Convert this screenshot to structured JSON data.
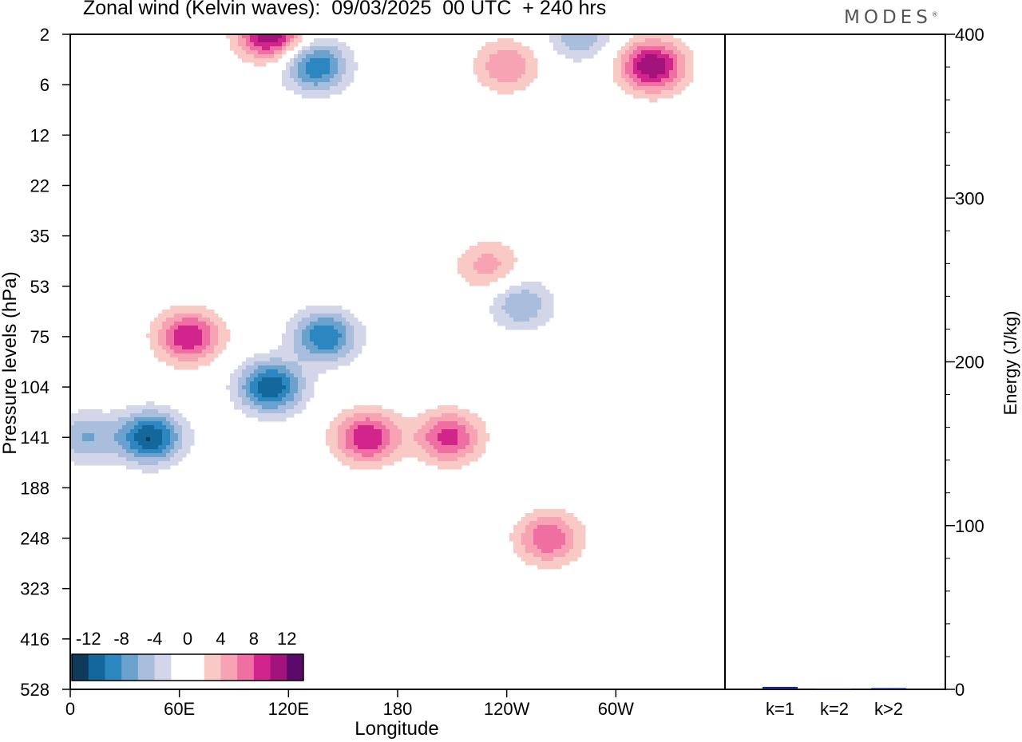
{
  "figure": {
    "title": "Zonal wind (Kelvin waves):  09/03/2025  00 UTC  + 240 hrs",
    "brand": "MODES"
  },
  "chart_data": [
    {
      "type": "heatmap",
      "title": "Zonal wind (Kelvin waves):  09/03/2025  00 UTC  + 240 hrs",
      "xlabel": "Longitude",
      "ylabel": "Pressure levels (hPa)",
      "x_ticks": [
        "0",
        "60E",
        "120E",
        "180",
        "120W",
        "60W"
      ],
      "x_tick_values": [
        0,
        60,
        120,
        180,
        240,
        300
      ],
      "xlim": [
        0,
        360
      ],
      "y_ticks": [
        "2",
        "6",
        "12",
        "22",
        "35",
        "53",
        "75",
        "104",
        "141",
        "188",
        "248",
        "323",
        "416",
        "528"
      ],
      "y_scale": "pressure levels, top of atmosphere at top",
      "colorbar": {
        "labels": [
          "-12",
          "-8",
          "-4",
          "0",
          "4",
          "8",
          "12"
        ],
        "level_colors": [
          "#0f3a5a",
          "#14679a",
          "#2c86bf",
          "#6aa1cd",
          "#a9bedd",
          "#d3d5e8",
          "#ffffff",
          "#ffffff",
          "#f9c9c6",
          "#f7a3b4",
          "#ef6fa2",
          "#d1258c",
          "#a4127c",
          "#5b0a6a"
        ]
      },
      "features": [
        {
          "sign": "negative",
          "peak": -12,
          "lon": 44,
          "pressure": 141
        },
        {
          "sign": "negative",
          "peak": -12,
          "lon": 110,
          "pressure": 104
        },
        {
          "sign": "negative",
          "peak": -10,
          "lon": 140,
          "pressure": 75
        },
        {
          "sign": "negative",
          "peak": -10,
          "lon": 135,
          "pressure": 4
        },
        {
          "sign": "negative",
          "peak": -6,
          "lon": 8,
          "pressure": 141
        },
        {
          "sign": "negative",
          "peak": -6,
          "lon": 248,
          "pressure": 60
        },
        {
          "sign": "negative",
          "peak": -6,
          "lon": 280,
          "pressure": 2
        },
        {
          "sign": "positive",
          "peak": 10,
          "lon": 65,
          "pressure": 75
        },
        {
          "sign": "positive",
          "peak": 10,
          "lon": 163,
          "pressure": 141
        },
        {
          "sign": "positive",
          "peak": 9,
          "lon": 208,
          "pressure": 141
        },
        {
          "sign": "positive",
          "peak": 8,
          "lon": 263,
          "pressure": 248
        },
        {
          "sign": "positive",
          "peak": 12,
          "lon": 320,
          "pressure": 4
        },
        {
          "sign": "positive",
          "peak": 12,
          "lon": 110,
          "pressure": 2
        },
        {
          "sign": "positive",
          "peak": 6,
          "lon": 240,
          "pressure": 4
        },
        {
          "sign": "positive",
          "peak": 5,
          "lon": 230,
          "pressure": 45
        }
      ]
    },
    {
      "type": "bar",
      "categories": [
        "k=1",
        "k=2",
        "k>2"
      ],
      "values": [
        1.5,
        0.3,
        0.8
      ],
      "ylabel": "Energy (J/kg)",
      "ylim": [
        0,
        400
      ],
      "y_ticks": [
        "0",
        "100",
        "200",
        "300",
        "400"
      ],
      "bar_color": "#1a237e"
    }
  ]
}
